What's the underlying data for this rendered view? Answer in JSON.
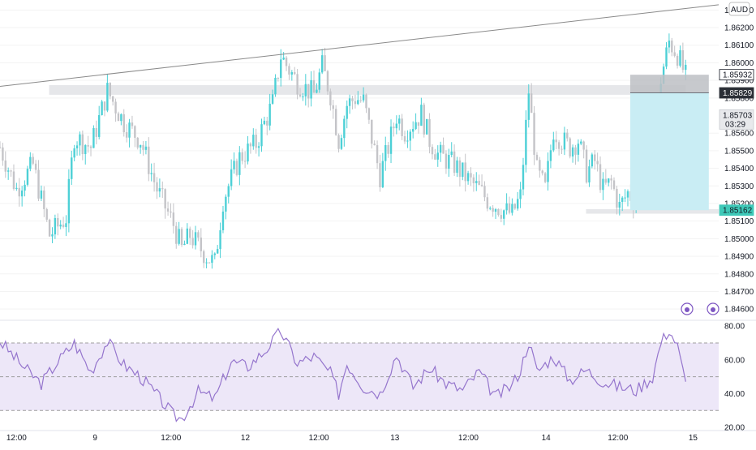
{
  "currency_label": "AUD",
  "colors": {
    "up": "#4dd0d6",
    "down": "#c4c4c8",
    "trendline": "#8a8a8a",
    "zone": "#e6e7ea",
    "target_zone": "#c9edf4",
    "stop_zone": "#bdbfc4",
    "rsi_line": "#9575cd",
    "rsi_band": "#ede7f8",
    "rsi_level": "#9e9e9e",
    "price_tag_current": "#e8e9ec",
    "price_tag_entry": "#2b2f36",
    "price_tag_tp": "#3ec9b8"
  },
  "chart_data": [
    {
      "type": "candlestick",
      "title": "",
      "quote_currency": "AUD",
      "y_axis": {
        "range": [
          1.8455,
          1.8632
        ],
        "ticks": [
          "1.86300",
          "1.86200",
          "1.86100",
          "1.86000",
          "1.85900",
          "1.85800",
          "1.85600",
          "1.85500",
          "1.85400",
          "1.85300",
          "1.85200",
          "1.85100",
          "1.85000",
          "1.84900",
          "1.84800",
          "1.84700",
          "1.84600"
        ]
      },
      "x_axis": {
        "ticks": [
          "12:00",
          "9",
          "12:00",
          "12",
          "12:00",
          "13",
          "12:00",
          "14",
          "12:00",
          "15"
        ]
      },
      "price_path": [
        {
          "t": 0,
          "p": 1.8552
        },
        {
          "t": 2,
          "p": 1.8528
        },
        {
          "t": 4,
          "p": 1.8542
        },
        {
          "t": 6,
          "p": 1.8502
        },
        {
          "t": 8,
          "p": 1.8512
        },
        {
          "t": 9,
          "p": 1.8558
        },
        {
          "t": 11,
          "p": 1.8552
        },
        {
          "t": 13,
          "p": 1.8584
        },
        {
          "t": 15,
          "p": 1.8566
        },
        {
          "t": 17,
          "p": 1.8556
        },
        {
          "t": 19,
          "p": 1.8528
        },
        {
          "t": 21,
          "p": 1.8508
        },
        {
          "t": 22,
          "p": 1.8494
        },
        {
          "t": 23,
          "p": 1.8502
        },
        {
          "t": 25,
          "p": 1.849
        },
        {
          "t": 26,
          "p": 1.8486
        },
        {
          "t": 27,
          "p": 1.8522
        },
        {
          "t": 29,
          "p": 1.8546
        },
        {
          "t": 31,
          "p": 1.8554
        },
        {
          "t": 33,
          "p": 1.8577
        },
        {
          "t": 34,
          "p": 1.8604
        },
        {
          "t": 35,
          "p": 1.8596
        },
        {
          "t": 36,
          "p": 1.8589
        },
        {
          "t": 38,
          "p": 1.8582
        },
        {
          "t": 39,
          "p": 1.8598
        },
        {
          "t": 40,
          "p": 1.8582
        },
        {
          "t": 41,
          "p": 1.8556
        },
        {
          "t": 42,
          "p": 1.8576
        },
        {
          "t": 43,
          "p": 1.858
        },
        {
          "t": 44,
          "p": 1.8578
        },
        {
          "t": 46,
          "p": 1.8536
        },
        {
          "t": 47,
          "p": 1.8552
        },
        {
          "t": 48,
          "p": 1.857
        },
        {
          "t": 49,
          "p": 1.8561
        },
        {
          "t": 50,
          "p": 1.8566
        },
        {
          "t": 51,
          "p": 1.8571
        },
        {
          "t": 52,
          "p": 1.8556
        },
        {
          "t": 53,
          "p": 1.8548
        },
        {
          "t": 55,
          "p": 1.8542
        },
        {
          "t": 57,
          "p": 1.8532
        },
        {
          "t": 58,
          "p": 1.8528
        },
        {
          "t": 59,
          "p": 1.8522
        },
        {
          "t": 61,
          "p": 1.8516
        },
        {
          "t": 62,
          "p": 1.8514
        },
        {
          "t": 63,
          "p": 1.8524
        },
        {
          "t": 64,
          "p": 1.8584
        },
        {
          "t": 65,
          "p": 1.8538
        },
        {
          "t": 66,
          "p": 1.8528
        },
        {
          "t": 67,
          "p": 1.8562
        },
        {
          "t": 68,
          "p": 1.8556
        },
        {
          "t": 69,
          "p": 1.8552
        },
        {
          "t": 70,
          "p": 1.8556
        },
        {
          "t": 71,
          "p": 1.8538
        },
        {
          "t": 72,
          "p": 1.8544
        },
        {
          "t": 73,
          "p": 1.8528
        },
        {
          "t": 74,
          "p": 1.8532
        },
        {
          "t": 75,
          "p": 1.8518
        },
        {
          "t": 76,
          "p": 1.8526
        },
        {
          "t": 77,
          "p": 1.8521
        },
        {
          "t": 78,
          "p": 1.853
        },
        {
          "t": 79,
          "p": 1.8547
        },
        {
          "t": 80,
          "p": 1.8591
        },
        {
          "t": 81,
          "p": 1.8612
        },
        {
          "t": 82,
          "p": 1.8605
        },
        {
          "t": 83,
          "p": 1.8592
        }
      ],
      "rsi": {
        "levels": [
          70,
          50,
          30
        ],
        "range": [
          20,
          82
        ],
        "ticks": [
          "80.00",
          "60.00",
          "40.00",
          "20.00"
        ],
        "path": [
          {
            "t": 0,
            "v": 71
          },
          {
            "t": 3,
            "v": 55
          },
          {
            "t": 5,
            "v": 46
          },
          {
            "t": 7,
            "v": 59
          },
          {
            "t": 9,
            "v": 70
          },
          {
            "t": 11,
            "v": 53
          },
          {
            "t": 13,
            "v": 71
          },
          {
            "t": 15,
            "v": 57
          },
          {
            "t": 17,
            "v": 50
          },
          {
            "t": 19,
            "v": 39
          },
          {
            "t": 21,
            "v": 27
          },
          {
            "t": 22,
            "v": 25
          },
          {
            "t": 24,
            "v": 41
          },
          {
            "t": 26,
            "v": 37
          },
          {
            "t": 28,
            "v": 59
          },
          {
            "t": 30,
            "v": 56
          },
          {
            "t": 32,
            "v": 65
          },
          {
            "t": 34,
            "v": 77
          },
          {
            "t": 36,
            "v": 58
          },
          {
            "t": 38,
            "v": 62
          },
          {
            "t": 40,
            "v": 52
          },
          {
            "t": 41,
            "v": 40
          },
          {
            "t": 42,
            "v": 58
          },
          {
            "t": 44,
            "v": 44
          },
          {
            "t": 46,
            "v": 40
          },
          {
            "t": 48,
            "v": 63
          },
          {
            "t": 50,
            "v": 44
          },
          {
            "t": 52,
            "v": 55
          },
          {
            "t": 54,
            "v": 46
          },
          {
            "t": 56,
            "v": 42
          },
          {
            "t": 58,
            "v": 53
          },
          {
            "t": 60,
            "v": 38
          },
          {
            "t": 62,
            "v": 45
          },
          {
            "t": 63,
            "v": 54
          },
          {
            "t": 64,
            "v": 71
          },
          {
            "t": 65,
            "v": 53
          },
          {
            "t": 67,
            "v": 62
          },
          {
            "t": 69,
            "v": 48
          },
          {
            "t": 71,
            "v": 54
          },
          {
            "t": 73,
            "v": 47
          },
          {
            "t": 75,
            "v": 44
          },
          {
            "t": 77,
            "v": 42
          },
          {
            "t": 79,
            "v": 50
          },
          {
            "t": 80,
            "v": 70
          },
          {
            "t": 81,
            "v": 78
          },
          {
            "t": 82,
            "v": 68
          },
          {
            "t": 83,
            "v": 46
          }
        ]
      },
      "trendline": {
        "from": {
          "t": 0,
          "p": 1.85866
        },
        "to": {
          "t": 87,
          "p": 1.8633
        }
      },
      "horizontal_zones": [
        {
          "name": "resistance",
          "from_t": 3,
          "to_t": 83,
          "p_low": 1.85818,
          "p_high": 1.85873
        },
        {
          "name": "support",
          "from_t": 68,
          "to_t": 87,
          "p_low": 1.85142,
          "p_high": 1.85168
        }
      ],
      "position_tool": {
        "from_t": 76,
        "to_t": 86,
        "stop": 1.85932,
        "entry": 1.85829,
        "target": 1.85162
      },
      "price_labels": [
        {
          "name": "stop",
          "value": "1.85932"
        },
        {
          "name": "entry",
          "value": "1.85829"
        },
        {
          "name": "current",
          "value": "1.85703",
          "countdown": "03:29"
        },
        {
          "name": "target",
          "value": "1.85162"
        }
      ]
    }
  ]
}
